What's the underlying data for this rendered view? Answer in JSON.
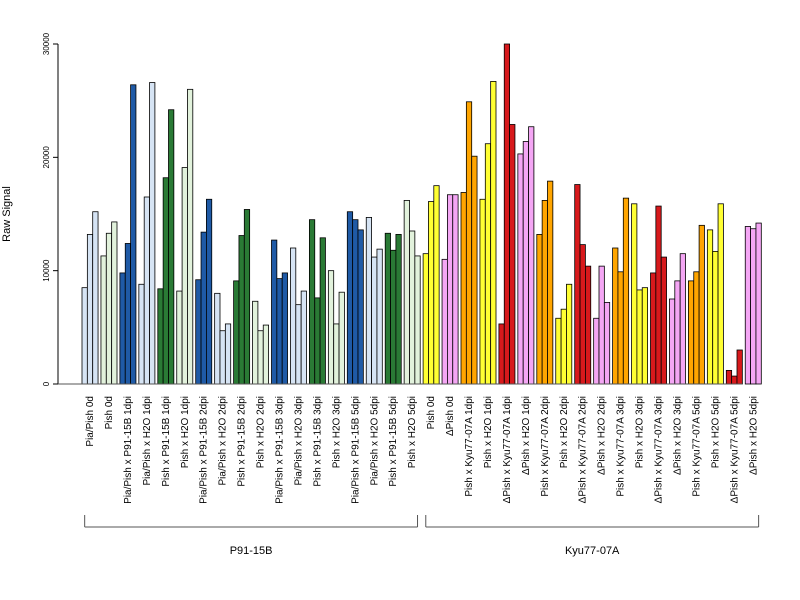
{
  "chart_data": {
    "type": "bar",
    "ylabel": "Raw Signal",
    "ylim": [
      0,
      30000
    ],
    "yticks": [
      0,
      10000,
      20000,
      30000
    ],
    "grid": false,
    "colors": {
      "light_blue": "#d6e4f4",
      "dark_blue": "#1f5aa6",
      "dark_green": "#2a7a35",
      "light_green": "#e2f2dc",
      "yellow": "#ffff33",
      "pink": "#f4a6f4",
      "orange": "#ffa500",
      "red": "#d7191c"
    },
    "categories": [
      {
        "label": "Pia/Pish 0d",
        "color": "light_blue",
        "values": [
          8500,
          13200,
          15200
        ]
      },
      {
        "label": "Pish 0d",
        "color": "light_green",
        "values": [
          11300,
          13300,
          14300
        ]
      },
      {
        "label": "Pia/Pish x P91-15B 1dpi",
        "color": "dark_blue",
        "values": [
          9800,
          12400,
          26400
        ]
      },
      {
        "label": "Pia/Pish x H2O 1dpi",
        "color": "light_blue",
        "values": [
          8800,
          16500,
          26600
        ]
      },
      {
        "label": "Pish x P91-15B 1dpi",
        "color": "dark_green",
        "values": [
          8400,
          18200,
          24200
        ]
      },
      {
        "label": "Pish x H2O 1dpi",
        "color": "light_green",
        "values": [
          8200,
          19100,
          26000
        ]
      },
      {
        "label": "Pia/Pish x P91-15B 2dpi",
        "color": "dark_blue",
        "values": [
          9200,
          13400,
          16300
        ]
      },
      {
        "label": "Pia/Pish x H2O 2dpi",
        "color": "light_blue",
        "values": [
          8000,
          4700,
          5300
        ]
      },
      {
        "label": "Pish x P91-15B 2dpi",
        "color": "dark_green",
        "values": [
          9100,
          13100,
          15400
        ]
      },
      {
        "label": "Pish x H2O 2dpi",
        "color": "light_green",
        "values": [
          7300,
          4700,
          5200
        ]
      },
      {
        "label": "Pia/Pish x P91-15B 3dpi",
        "color": "dark_blue",
        "values": [
          12700,
          9300,
          9800
        ]
      },
      {
        "label": "Pia/Pish x H2O 3dpi",
        "color": "light_blue",
        "values": [
          12000,
          7000,
          8200
        ]
      },
      {
        "label": "Pish x P91-15B 3dpi",
        "color": "dark_green",
        "values": [
          14500,
          7600,
          12900
        ]
      },
      {
        "label": "Pish x H2O 3dpi",
        "color": "light_green",
        "values": [
          10000,
          5300,
          8100
        ]
      },
      {
        "label": "Pia/Pish x P91-15B 5dpi",
        "color": "dark_blue",
        "values": [
          15200,
          14500,
          13600
        ]
      },
      {
        "label": "Pia/Pish x H2O 5dpi",
        "color": "light_blue",
        "values": [
          14700,
          11200,
          11900
        ]
      },
      {
        "label": "Pish x P91-15B 5dpi",
        "color": "dark_green",
        "values": [
          13300,
          11800,
          13200
        ]
      },
      {
        "label": "Pish x H2O 5dpi",
        "color": "light_green",
        "values": [
          16200,
          13500,
          11300
        ]
      },
      {
        "label": "Pish 0d",
        "color": "yellow",
        "values": [
          11500,
          16100,
          17500
        ]
      },
      {
        "label": "ΔPish 0d",
        "color": "pink",
        "values": [
          11000,
          16700,
          16700
        ]
      },
      {
        "label": "Pish x Kyu77-07A 1dpi",
        "color": "orange",
        "values": [
          16900,
          24900,
          20100
        ]
      },
      {
        "label": "Pish x H2O 1dpi",
        "color": "yellow",
        "values": [
          16300,
          21200,
          26700
        ]
      },
      {
        "label": "ΔPish x Kyu77-07A 1dpi",
        "color": "red",
        "values": [
          5300,
          30000,
          22900
        ]
      },
      {
        "label": "ΔPish x H2O 1dpi",
        "color": "pink",
        "values": [
          20300,
          21400,
          22700
        ]
      },
      {
        "label": "Pish x Kyu77-07A 2dpi",
        "color": "orange",
        "values": [
          13200,
          16200,
          17900
        ]
      },
      {
        "label": "Pish x H2O 2dpi",
        "color": "yellow",
        "values": [
          5800,
          6600,
          8800
        ]
      },
      {
        "label": "ΔPish x Kyu77-07A 2dpi",
        "color": "red",
        "values": [
          17600,
          12300,
          10400
        ]
      },
      {
        "label": "ΔPish x H2O 2dpi",
        "color": "pink",
        "values": [
          5800,
          10400,
          7200
        ]
      },
      {
        "label": "Pish x Kyu77-07A 3dpi",
        "color": "orange",
        "values": [
          12000,
          9900,
          16400
        ]
      },
      {
        "label": "Pish x H2O 3dpi",
        "color": "yellow",
        "values": [
          15900,
          8300,
          8500
        ]
      },
      {
        "label": "ΔPish x Kyu77-07A 3dpi",
        "color": "red",
        "values": [
          9800,
          15700,
          11200
        ]
      },
      {
        "label": "ΔPish x H2O 3dpi",
        "color": "pink",
        "values": [
          7500,
          9100,
          11500
        ]
      },
      {
        "label": "Pish x Kyu77-07A 5dpi",
        "color": "orange",
        "values": [
          9100,
          9900,
          14000
        ]
      },
      {
        "label": "Pish x H2O 5dpi",
        "color": "yellow",
        "values": [
          13600,
          11700,
          15900
        ]
      },
      {
        "label": "ΔPish x Kyu77-07A 5dpi",
        "color": "red",
        "values": [
          1200,
          700,
          3000
        ]
      },
      {
        "label": "ΔPish x H2O 5dpi",
        "color": "pink",
        "values": [
          13900,
          13700,
          14200
        ]
      }
    ],
    "groups": [
      {
        "label": "P91-15B",
        "start": 0,
        "end": 17
      },
      {
        "label": "Kyu77-07A",
        "start": 18,
        "end": 35
      }
    ]
  }
}
